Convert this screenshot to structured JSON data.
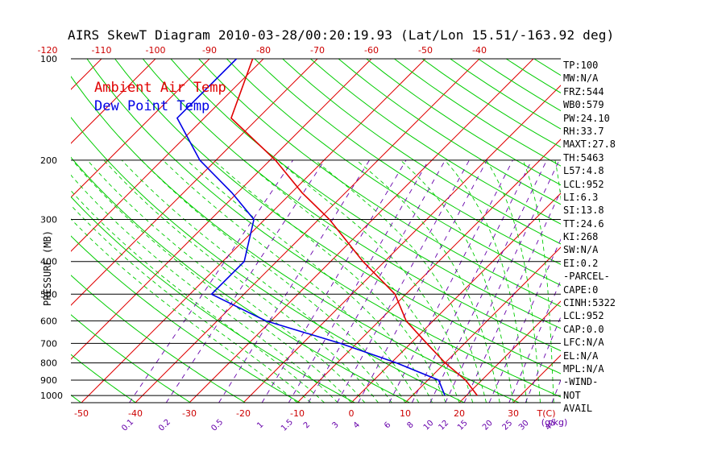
{
  "title": "AIRS SkewT Diagram 2010-03-28/00:20:19.93 (Lat/Lon 15.51/-163.92 deg)",
  "legend": {
    "ambient": "Ambient Air Temp",
    "dewpoint": "Dew Point Temp"
  },
  "colors": {
    "temperature": "#e00000",
    "dewpoint": "#0000e6",
    "isotherm": "#e00000",
    "dry_adiabat": "#00cc00",
    "moist_adiabat": "#00cc00",
    "mixing_ratio": "#6600aa",
    "isobar": "#000000"
  },
  "chart_data": {
    "type": "line",
    "title": "AIRS SkewT Diagram 2010-03-28/00:20:19.93 (Lat/Lon 15.51/-163.92 deg)",
    "ylabel": "PRESSURE (MB)",
    "xlabel": "T(C)",
    "mixing_ratio_label": "(g/kg)",
    "y_scale": "log",
    "ylim": [
      1050,
      100
    ],
    "pressure_ticks": [
      100,
      200,
      300,
      400,
      500,
      600,
      700,
      800,
      900,
      1000
    ],
    "bottom_temp_ticks": [
      -50,
      -40,
      -30,
      -20,
      -10,
      0,
      10,
      20,
      30
    ],
    "top_temp_ticks": [
      -120,
      -110,
      -100,
      -90,
      -80,
      -70,
      -60,
      -50,
      -40
    ],
    "mixing_ratio_ticks": [
      "0.1",
      "0.2",
      "0.5",
      "1",
      "1.5",
      "2",
      "3",
      "4",
      "6",
      "8",
      "10",
      "12",
      "15",
      "20",
      "25",
      "30",
      "40"
    ],
    "series": [
      {
        "name": "Ambient Air Temp",
        "pressure": [
          100,
          150,
          200,
          250,
          300,
          400,
          500,
          600,
          700,
          800,
          900,
          1000
        ],
        "temperature": [
          -82,
          -75,
          -59,
          -48,
          -38,
          -24,
          -12,
          -5,
          3,
          10,
          17,
          22
        ]
      },
      {
        "name": "Dew Point Temp",
        "pressure": [
          100,
          150,
          200,
          250,
          300,
          400,
          500,
          600,
          700,
          800,
          900,
          1000
        ],
        "temperature": [
          -85,
          -85,
          -73,
          -61,
          -52,
          -46,
          -46,
          -31,
          -13,
          1,
          12,
          16
        ]
      }
    ]
  },
  "stats": [
    "TP:100",
    "MW:N/A",
    "FRZ:544",
    "WB0:579",
    "PW:24.10",
    "RH:33.7",
    "MAXT:27.8",
    "TH:5463",
    "L57:4.8",
    "LCL:952",
    "LI:6.3",
    "SI:13.8",
    "TT:24.6",
    "KI:268",
    "SW:N/A",
    "EI:0.2",
    "-PARCEL-",
    "CAPE:0",
    "CINH:5322",
    "LCL:952",
    "CAP:0.0",
    "LFC:N/A",
    "EL:N/A",
    "MPL:N/A",
    "-WIND-",
    " NOT",
    " AVAIL"
  ]
}
